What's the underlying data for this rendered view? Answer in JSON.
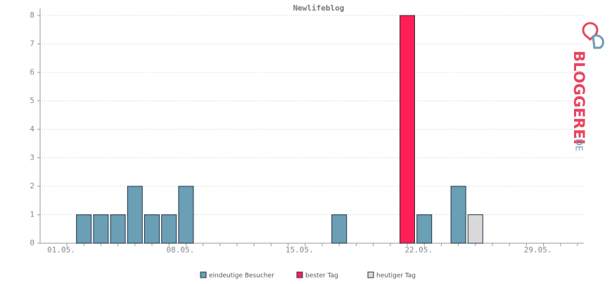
{
  "chart_data": {
    "type": "bar",
    "title": "Newlifeblog",
    "categories": [
      "01.05.",
      null,
      null,
      null,
      null,
      null,
      null,
      "08.05.",
      null,
      null,
      null,
      null,
      null,
      null,
      "15.05.",
      null,
      null,
      null,
      null,
      null,
      null,
      "22.05.",
      null,
      null,
      null,
      null,
      null,
      null,
      "29.05.",
      null,
      null
    ],
    "series": [
      {
        "name": "eindeutige Besucher",
        "color": "#6a9fb5",
        "values": [
          null,
          1,
          1,
          1,
          2,
          1,
          1,
          2,
          null,
          null,
          null,
          null,
          null,
          null,
          null,
          null,
          1,
          null,
          null,
          null,
          null,
          1,
          null,
          2,
          null,
          null,
          null,
          null,
          null,
          null,
          null
        ]
      },
      {
        "name": "bester Tag",
        "color": "#ff1f55",
        "values": [
          null,
          null,
          null,
          null,
          null,
          null,
          null,
          null,
          null,
          null,
          null,
          null,
          null,
          null,
          null,
          null,
          null,
          null,
          null,
          null,
          8,
          null,
          null,
          null,
          null,
          null,
          null,
          null,
          null,
          null,
          null
        ]
      },
      {
        "name": "heutiger Tag",
        "color": "#d9d9d9",
        "values": [
          null,
          null,
          null,
          null,
          null,
          null,
          null,
          null,
          null,
          null,
          null,
          null,
          null,
          null,
          null,
          null,
          null,
          null,
          null,
          null,
          null,
          null,
          null,
          null,
          1,
          null,
          null,
          null,
          null,
          null,
          null
        ]
      }
    ],
    "ylim": [
      0,
      8
    ],
    "yticks": [
      0,
      1,
      2,
      3,
      4,
      5,
      6,
      7,
      8
    ],
    "grid": true,
    "logo": {
      "name": "BLOGGEREI",
      "suffix": ".DE"
    }
  }
}
